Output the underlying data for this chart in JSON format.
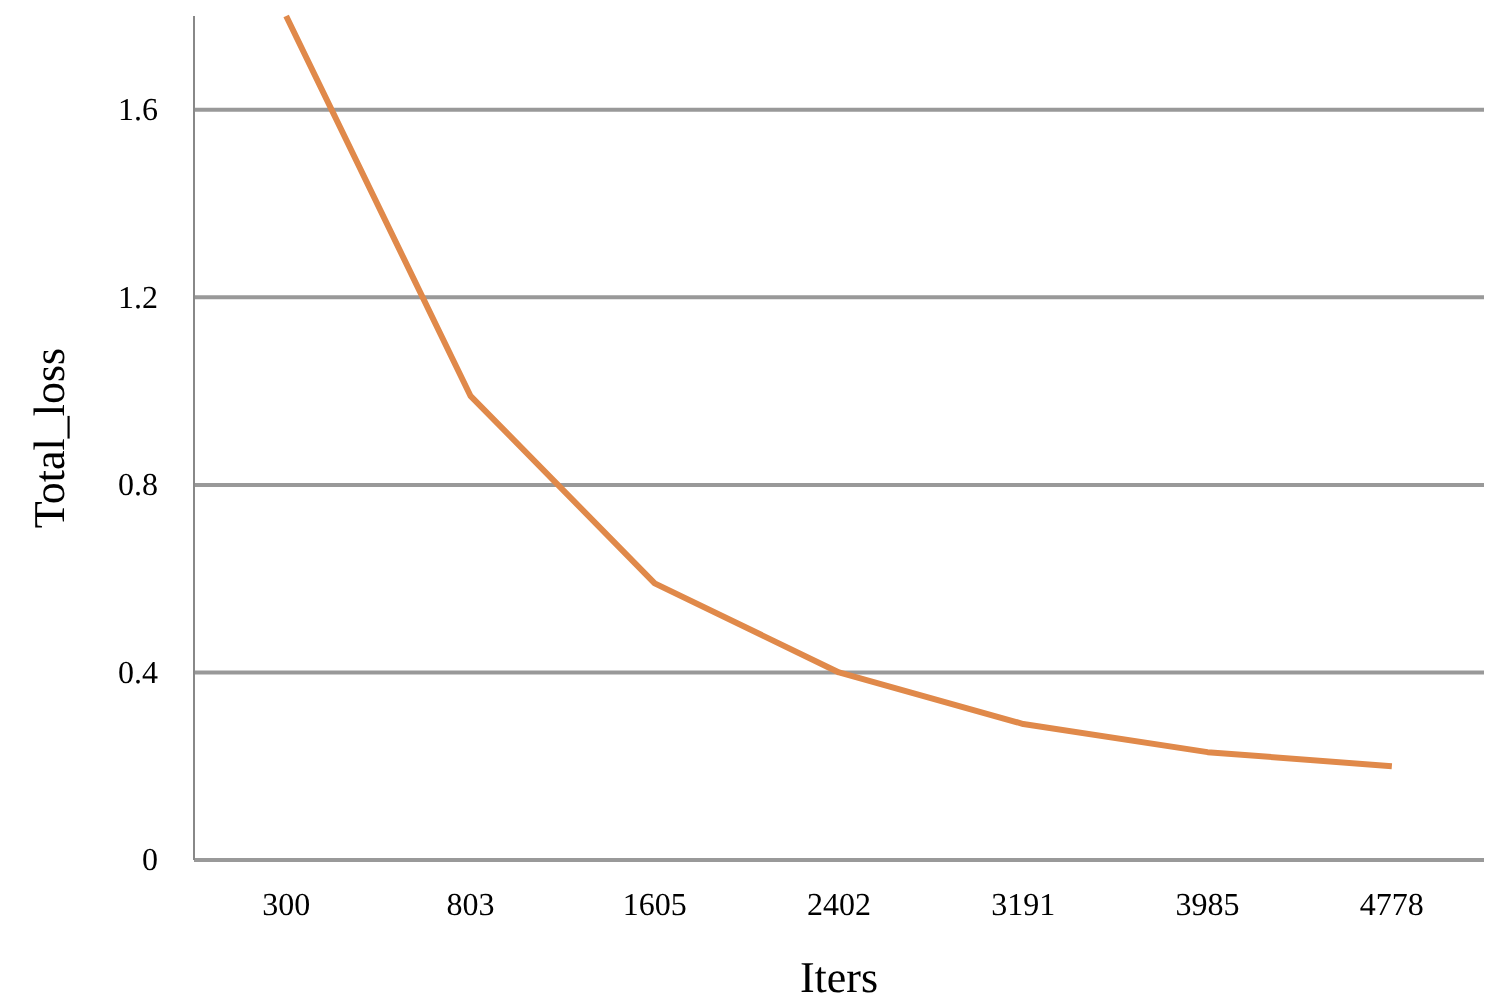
{
  "chart_data": {
    "type": "line",
    "xlabel": "Iters",
    "ylabel": "Total_loss",
    "categories": [
      "300",
      "803",
      "1605",
      "2402",
      "3191",
      "3985",
      "4778"
    ],
    "series": [
      {
        "color": "#e0894a",
        "values": [
          1.8,
          0.99,
          0.59,
          0.4,
          0.29,
          0.23,
          0.2
        ]
      }
    ],
    "ylim": [
      0,
      1.8
    ],
    "yticks": [
      0,
      0.4,
      0.8,
      1.2,
      1.6
    ],
    "grid": "y",
    "marker": "none",
    "line_style": "solid"
  }
}
